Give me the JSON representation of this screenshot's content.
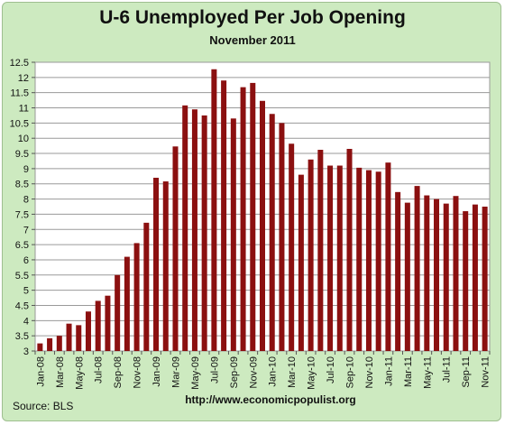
{
  "chart_data": {
    "type": "bar",
    "title": "U-6 Unemployed Per Job Opening",
    "subtitle": "November 2011",
    "categories": [
      "Jan-08",
      "Feb-08",
      "Mar-08",
      "Apr-08",
      "May-08",
      "Jun-08",
      "Jul-08",
      "Aug-08",
      "Sep-08",
      "Oct-08",
      "Nov-08",
      "Dec-08",
      "Jan-09",
      "Feb-09",
      "Mar-09",
      "Apr-09",
      "May-09",
      "Jun-09",
      "Jul-09",
      "Aug-09",
      "Sep-09",
      "Oct-09",
      "Nov-09",
      "Dec-09",
      "Jan-10",
      "Feb-10",
      "Mar-10",
      "Apr-10",
      "May-10",
      "Jun-10",
      "Jul-10",
      "Aug-10",
      "Sep-10",
      "Oct-10",
      "Nov-10",
      "Dec-10",
      "Jan-11",
      "Feb-11",
      "Mar-11",
      "Apr-11",
      "May-11",
      "Jun-11",
      "Jul-11",
      "Aug-11",
      "Sep-11",
      "Oct-11",
      "Nov-11"
    ],
    "values": [
      3.25,
      3.42,
      3.5,
      3.9,
      3.85,
      4.3,
      4.65,
      4.82,
      5.5,
      6.1,
      6.55,
      7.22,
      8.7,
      8.58,
      9.73,
      11.08,
      10.95,
      10.75,
      12.27,
      11.9,
      10.65,
      11.68,
      11.82,
      11.23,
      10.8,
      10.5,
      9.82,
      8.8,
      9.3,
      9.62,
      9.1,
      9.1,
      9.65,
      9.03,
      8.95,
      8.9,
      9.2,
      8.23,
      7.88,
      8.43,
      8.12,
      8.0,
      7.85,
      8.1,
      7.6,
      7.82,
      7.75
    ],
    "x_tick_labels": [
      "Jan-08",
      "Mar-08",
      "May-08",
      "Jul-08",
      "Sep-08",
      "Nov-08",
      "Jan-09",
      "Mar-09",
      "May-09",
      "Jul-09",
      "Sep-09",
      "Nov-09",
      "Jan-10",
      "Mar-10",
      "May-10",
      "Jul-10",
      "Sep-10",
      "Nov-10",
      "Jan-11",
      "Mar-11",
      "May-11",
      "Jul-11",
      "Sep-11",
      "Nov-11"
    ],
    "y_ticks": [
      "3",
      "3.5",
      "4",
      "4.5",
      "5",
      "5.5",
      "6",
      "6.5",
      "7",
      "7.5",
      "8",
      "8.5",
      "9",
      "9.5",
      "10",
      "10.5",
      "11",
      "11.5",
      "12",
      "12.5"
    ],
    "xlabel": "",
    "ylabel": "",
    "ylim": [
      3,
      12.5
    ],
    "grid": "horizontal",
    "bar_color": "#8b1010",
    "background_color": "#cdeac0",
    "plot_color": "#ffffff"
  },
  "footer": {
    "source": "Source:  BLS",
    "url": "http://www.economicpopulist.org"
  }
}
